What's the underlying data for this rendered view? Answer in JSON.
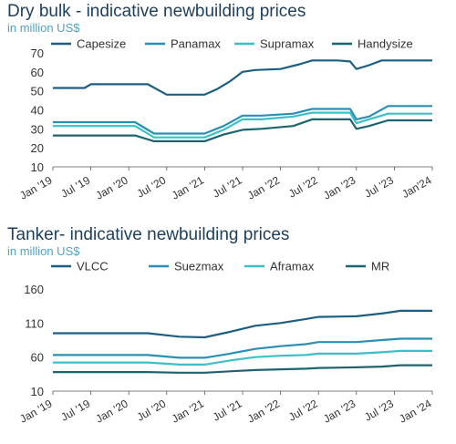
{
  "chart_data": [
    {
      "type": "line",
      "title": "Dry bulk - indicative newbuilding prices",
      "subtitle": "in million US$",
      "xlabel": "",
      "ylabel": "",
      "ylim": [
        10,
        70
      ],
      "yticks": [
        10,
        20,
        30,
        40,
        50,
        60,
        70
      ],
      "xticks": [
        "Jan '19",
        "Jul '19",
        "Jan '20",
        "Jul '20",
        "Jan '21",
        "Jul '21",
        "Jan '22",
        "Jul '22",
        "Jan '23",
        "Jul '23",
        "Jan'24"
      ],
      "legend": "top",
      "grid": false,
      "series": [
        {
          "name": "Capesize",
          "color": "#1d5f82",
          "points": [
            [
              "2019-01",
              51.5
            ],
            [
              "2019-06",
              51.5
            ],
            [
              "2019-07",
              53.5
            ],
            [
              "2020-04",
              53.5
            ],
            [
              "2020-07",
              48
            ],
            [
              "2020-12",
              48
            ],
            [
              "2021-01",
              48
            ],
            [
              "2021-03",
              51
            ],
            [
              "2021-05",
              55
            ],
            [
              "2021-07",
              60
            ],
            [
              "2021-09",
              61
            ],
            [
              "2022-01",
              61.5
            ],
            [
              "2022-04",
              64
            ],
            [
              "2022-06",
              66
            ],
            [
              "2022-10",
              66
            ],
            [
              "2022-12",
              65.5
            ],
            [
              "2023-01",
              61.5
            ],
            [
              "2023-03",
              63.5
            ],
            [
              "2023-05",
              66
            ],
            [
              "2024-01",
              66
            ]
          ]
        },
        {
          "name": "Panamax",
          "color": "#2a8fb5",
          "points": [
            [
              "2019-01",
              33.5
            ],
            [
              "2020-02",
              33.5
            ],
            [
              "2020-05",
              27.5
            ],
            [
              "2021-01",
              27.5
            ],
            [
              "2021-04",
              31.5
            ],
            [
              "2021-07",
              37
            ],
            [
              "2021-10",
              37
            ],
            [
              "2022-03",
              38
            ],
            [
              "2022-06",
              40.5
            ],
            [
              "2022-12",
              40.5
            ],
            [
              "2023-01",
              35
            ],
            [
              "2023-03",
              36.5
            ],
            [
              "2023-06",
              42
            ],
            [
              "2024-01",
              42
            ]
          ]
        },
        {
          "name": "Supramax",
          "color": "#3cc0c6",
          "points": [
            [
              "2019-01",
              31.5
            ],
            [
              "2020-02",
              31.5
            ],
            [
              "2020-05",
              25.5
            ],
            [
              "2021-01",
              25.5
            ],
            [
              "2021-04",
              29.5
            ],
            [
              "2021-07",
              35
            ],
            [
              "2021-10",
              35
            ],
            [
              "2022-03",
              36.5
            ],
            [
              "2022-06",
              38.5
            ],
            [
              "2022-12",
              38.5
            ],
            [
              "2023-01",
              33
            ],
            [
              "2023-03",
              35
            ],
            [
              "2023-06",
              38
            ],
            [
              "2024-01",
              38
            ]
          ]
        },
        {
          "name": "Handysize",
          "color": "#1b6470",
          "points": [
            [
              "2019-01",
              26.5
            ],
            [
              "2020-02",
              26.5
            ],
            [
              "2020-05",
              23.5
            ],
            [
              "2021-01",
              23.5
            ],
            [
              "2021-04",
              27
            ],
            [
              "2021-07",
              29.5
            ],
            [
              "2021-10",
              30
            ],
            [
              "2022-03",
              31.5
            ],
            [
              "2022-06",
              35
            ],
            [
              "2022-12",
              35
            ],
            [
              "2023-01",
              30
            ],
            [
              "2023-03",
              31.5
            ],
            [
              "2023-06",
              34.5
            ],
            [
              "2024-01",
              34.5
            ]
          ]
        }
      ]
    },
    {
      "type": "line",
      "title": "Tanker- indicative newbuilding prices",
      "subtitle": "in million US$",
      "xlabel": "",
      "ylabel": "",
      "ylim": [
        10,
        160
      ],
      "yticks": [
        10,
        60,
        110,
        160
      ],
      "xticks": [
        "Jan '19",
        "Jul '19",
        "Jan '20",
        "Jul '20",
        "Jan '21",
        "Jul '21",
        "Jan '22",
        "Jul '22",
        "Jan '23",
        "Jul '23",
        "Jan '24"
      ],
      "legend": "top",
      "grid": false,
      "series": [
        {
          "name": "VLCC",
          "color": "#1d5f82",
          "points": [
            [
              "2019-01",
              95
            ],
            [
              "2020-04",
              95
            ],
            [
              "2020-09",
              90
            ],
            [
              "2021-01",
              89
            ],
            [
              "2021-05",
              97
            ],
            [
              "2021-09",
              106
            ],
            [
              "2022-01",
              110
            ],
            [
              "2022-05",
              116
            ],
            [
              "2022-07",
              119
            ],
            [
              "2023-01",
              120
            ],
            [
              "2023-05",
              124
            ],
            [
              "2023-08",
              128
            ],
            [
              "2024-01",
              128
            ]
          ]
        },
        {
          "name": "Suezmax",
          "color": "#2a8fb5",
          "points": [
            [
              "2019-01",
              63
            ],
            [
              "2020-04",
              63
            ],
            [
              "2020-09",
              59
            ],
            [
              "2021-01",
              59
            ],
            [
              "2021-05",
              65
            ],
            [
              "2021-09",
              72
            ],
            [
              "2022-01",
              76
            ],
            [
              "2022-05",
              79
            ],
            [
              "2022-07",
              82
            ],
            [
              "2023-01",
              82
            ],
            [
              "2023-05",
              85
            ],
            [
              "2023-08",
              87
            ],
            [
              "2024-01",
              87
            ]
          ]
        },
        {
          "name": "Aframax",
          "color": "#3cc0c6",
          "points": [
            [
              "2019-01",
              52
            ],
            [
              "2020-04",
              52
            ],
            [
              "2020-09",
              49
            ],
            [
              "2021-01",
              49
            ],
            [
              "2021-05",
              55
            ],
            [
              "2021-09",
              60
            ],
            [
              "2022-01",
              62
            ],
            [
              "2022-05",
              63
            ],
            [
              "2022-07",
              65
            ],
            [
              "2023-01",
              65
            ],
            [
              "2023-05",
              67
            ],
            [
              "2023-08",
              69
            ],
            [
              "2024-01",
              69
            ]
          ]
        },
        {
          "name": "MR",
          "color": "#1b6470",
          "points": [
            [
              "2019-01",
              38
            ],
            [
              "2020-04",
              38
            ],
            [
              "2020-09",
              37
            ],
            [
              "2021-01",
              37
            ],
            [
              "2021-05",
              39
            ],
            [
              "2021-09",
              41
            ],
            [
              "2022-01",
              42
            ],
            [
              "2022-05",
              43
            ],
            [
              "2022-07",
              44
            ],
            [
              "2023-01",
              45
            ],
            [
              "2023-05",
              46
            ],
            [
              "2023-08",
              48
            ],
            [
              "2024-01",
              48
            ]
          ]
        }
      ]
    }
  ]
}
